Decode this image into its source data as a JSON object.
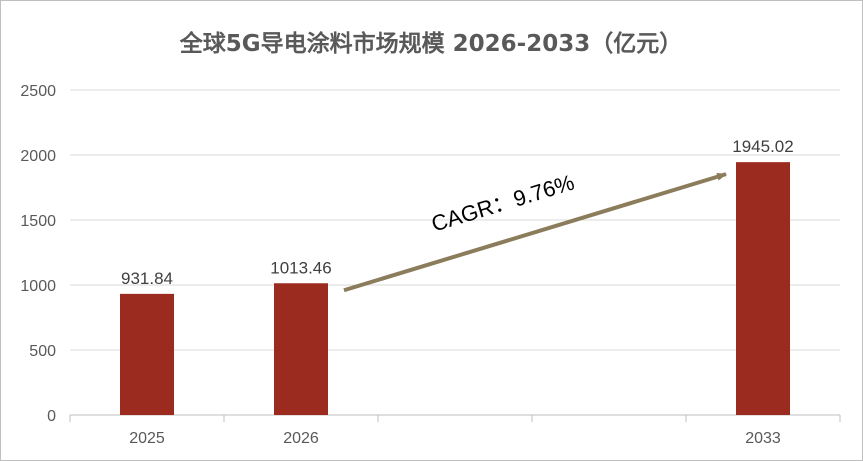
{
  "chart_data": {
    "type": "bar",
    "title": "全球5G导电涂料市场规模 2026-2033（亿元）",
    "categories": [
      "2025",
      "2026",
      "",
      "",
      "2033"
    ],
    "values": [
      931.84,
      1013.46,
      null,
      null,
      1945.02
    ],
    "data_labels": [
      "931.84",
      "1013.46",
      "",
      "",
      "1945.02"
    ],
    "ylim": [
      0,
      2500
    ],
    "yticks": [
      "0",
      "500",
      "1000",
      "1500",
      "2000",
      "2500"
    ],
    "grid": true,
    "legend": "none",
    "annotation": {
      "text": "CAGR：9.76%",
      "from_category": "2026",
      "to_category": "2033"
    },
    "colors": {
      "bar": "#9B2B1F",
      "arrow": "#8B7D5B",
      "grid": "#D9D9D9",
      "axis": "#BFBFBF"
    }
  }
}
